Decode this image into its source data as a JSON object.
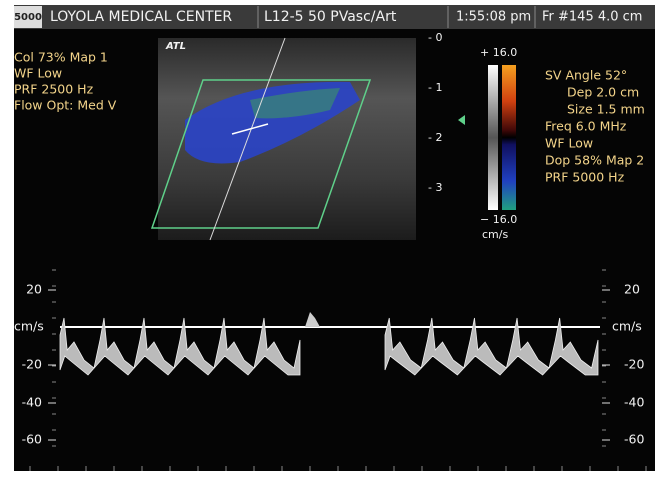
{
  "header": {
    "logo": "5000",
    "institution": "LOYOLA MEDICAL CENTER",
    "probe": "L12-5 50 PVasc/Art",
    "time": "1:55:08 pm",
    "frame": "Fr #145  4.0 cm"
  },
  "vendor_logo": "ATL",
  "color_settings": [
    "Col 73%  Map 1",
    "WF Low",
    "PRF 2500  Hz",
    "Flow Opt: Med V"
  ],
  "depth_scale": [
    "- 0",
    "- 1",
    "- 2",
    "- 3"
  ],
  "color_scale": {
    "max": "+ 16.0",
    "min": "− 16.0",
    "unit": "cm/s"
  },
  "doppler_settings": [
    "SV Angle 52°",
    "Dep 2.0  cm",
    "Size 1.5  mm",
    "Freq 6.0  MHz",
    "WF Low",
    "Dop 58%  Map 2",
    "PRF 5000  Hz"
  ],
  "spectral_scale": {
    "left": [
      "20",
      "cm/s",
      "-20",
      "-40",
      "-60"
    ],
    "right": [
      "20",
      "cm/s",
      "-20",
      "-40",
      "-60"
    ]
  }
}
